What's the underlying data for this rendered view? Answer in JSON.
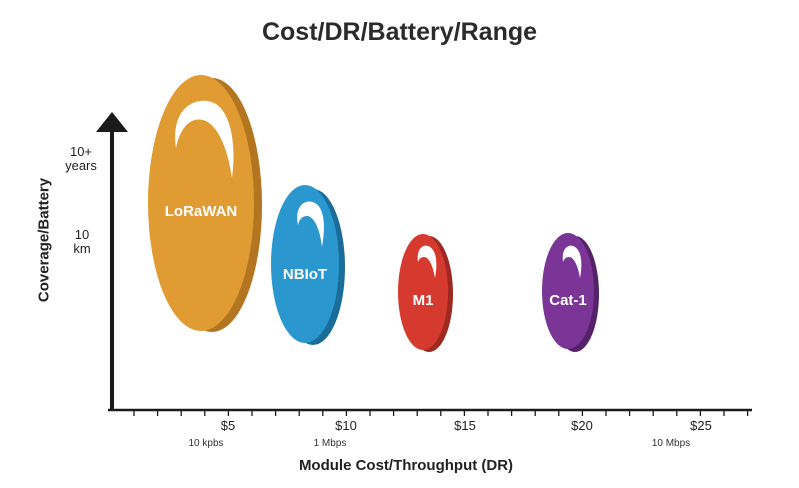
{
  "title": "Cost/DR/Battery/Range",
  "y_axis": {
    "label": "Coverage/Battery",
    "tick_years": [
      "10+",
      "years"
    ],
    "tick_km": [
      "10",
      "km"
    ]
  },
  "x_axis": {
    "label": "Module Cost/Throughput (DR)",
    "ticks": [
      "$5",
      "$10",
      "$15",
      "$20",
      "$25"
    ],
    "sub_ticks": [
      "10 kpbs",
      "1 Mbps",
      "10 Mbps"
    ]
  },
  "technologies": [
    {
      "name": "LoRaWAN",
      "color": "#e09b32",
      "shade": "#b3751f"
    },
    {
      "name": "NBIoT",
      "color": "#2a97cf",
      "shade": "#1b6d99"
    },
    {
      "name": "M1",
      "color": "#d63a2f",
      "shade": "#9e2920"
    },
    {
      "name": "Cat-1",
      "color": "#7a3596",
      "shade": "#54216a"
    }
  ],
  "colors": {
    "axis": "#1a1a1a",
    "background": "#ffffff"
  }
}
